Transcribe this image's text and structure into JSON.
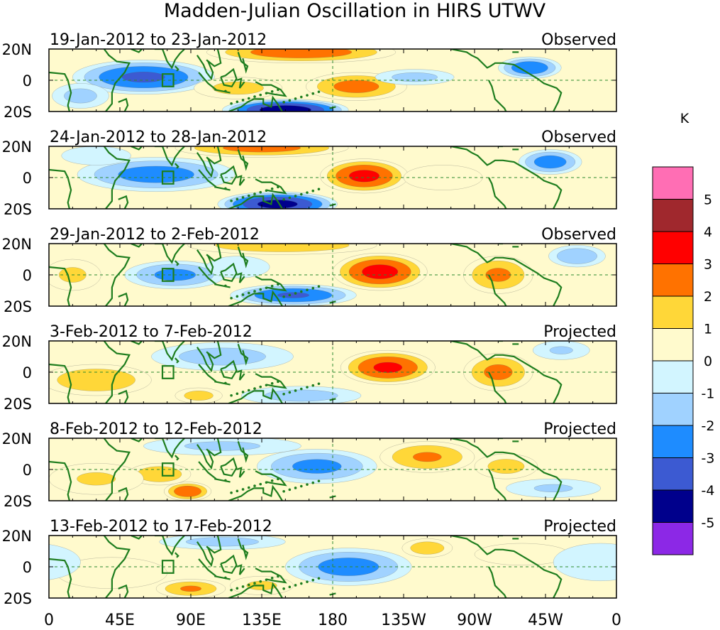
{
  "chart_data": {
    "type": "heatmap",
    "title": "Madden-Julian Oscillation in HIRS UTWV",
    "units": "K",
    "x_ticks": [
      "0",
      "45E",
      "90E",
      "135E",
      "180",
      "135W",
      "90W",
      "45W",
      "0"
    ],
    "y_ticks": [
      "20N",
      "0",
      "20S"
    ],
    "x_range_deg_east": [
      0,
      360
    ],
    "y_range_deg": [
      -20,
      20
    ],
    "colorbar": {
      "levels": [
        "5",
        "4",
        "3",
        "2",
        "1",
        "0",
        "-1",
        "-2",
        "-3",
        "-4",
        "-5"
      ],
      "colors": [
        "#ff6eb4",
        "#a0282d",
        "#ff0000",
        "#ff7200",
        "#ffd738",
        "#fffacd",
        "#d2f5ff",
        "#a0d2ff",
        "#1e8cff",
        "#3c5ad2",
        "#00008c",
        "#8c28e6"
      ]
    },
    "panels": [
      {
        "label": "19-Jan-2012 to 23-Jan-2012",
        "status": "Observed",
        "blobs": [
          {
            "lon": 60,
            "lat": 2,
            "r_lon": 45,
            "r_lat": 11,
            "v": -3.3
          },
          {
            "lon": 150,
            "lat": -19,
            "r_lon": 40,
            "r_lat": 7,
            "v": -4.8
          },
          {
            "lon": 160,
            "lat": 18,
            "r_lon": 60,
            "r_lat": 7,
            "v": 2.8
          },
          {
            "lon": 195,
            "lat": -4,
            "r_lon": 32,
            "r_lat": 9,
            "v": 2.5
          },
          {
            "lon": 305,
            "lat": 8,
            "r_lon": 20,
            "r_lat": 7,
            "v": -3.0
          },
          {
            "lon": 232,
            "lat": 2,
            "r_lon": 25,
            "r_lat": 5,
            "v": -1.5
          },
          {
            "lon": 120,
            "lat": -5,
            "r_lon": 28,
            "r_lat": 7,
            "v": 1.5
          },
          {
            "lon": 20,
            "lat": -10,
            "r_lon": 18,
            "r_lat": 8,
            "v": -1.5
          }
        ]
      },
      {
        "label": "24-Jan-2012 to 28-Jan-2012",
        "status": "Observed",
        "blobs": [
          {
            "lon": 68,
            "lat": 2,
            "r_lon": 50,
            "r_lat": 11,
            "v": -2.6
          },
          {
            "lon": 145,
            "lat": -17,
            "r_lon": 38,
            "r_lat": 8,
            "v": -4.5
          },
          {
            "lon": 135,
            "lat": 19,
            "r_lon": 55,
            "r_lat": 6,
            "v": 2.5
          },
          {
            "lon": 200,
            "lat": 1,
            "r_lon": 28,
            "r_lat": 11,
            "v": 3.4
          },
          {
            "lon": 318,
            "lat": 10,
            "r_lon": 20,
            "r_lat": 8,
            "v": -2.7
          },
          {
            "lon": 250,
            "lat": 0,
            "r_lon": 25,
            "r_lat": 8,
            "v": 1.0
          },
          {
            "lon": 30,
            "lat": 14,
            "r_lon": 22,
            "r_lat": 6,
            "v": -1.0
          }
        ]
      },
      {
        "label": "29-Jan-2012 to 2-Feb-2012",
        "status": "Observed",
        "blobs": [
          {
            "lon": 80,
            "lat": 0,
            "r_lon": 32,
            "r_lat": 9,
            "v": -2.4
          },
          {
            "lon": 155,
            "lat": -13,
            "r_lon": 40,
            "r_lat": 7,
            "v": -3.2
          },
          {
            "lon": 210,
            "lat": 2,
            "r_lon": 30,
            "r_lat": 12,
            "v": 3.5
          },
          {
            "lon": 148,
            "lat": 19,
            "r_lon": 60,
            "r_lat": 6,
            "v": 2.0
          },
          {
            "lon": 285,
            "lat": 0,
            "r_lon": 22,
            "r_lat": 12,
            "v": 2.3
          },
          {
            "lon": 335,
            "lat": 12,
            "r_lon": 18,
            "r_lat": 7,
            "v": -2.0
          },
          {
            "lon": 15,
            "lat": 0,
            "r_lon": 18,
            "r_lat": 10,
            "v": 1.3
          },
          {
            "lon": 120,
            "lat": 5,
            "r_lon": 20,
            "r_lat": 7,
            "v": -1.0
          }
        ]
      },
      {
        "label": "3-Feb-2012 to 7-Feb-2012",
        "status": "Projected",
        "blobs": [
          {
            "lon": 30,
            "lat": -5,
            "r_lon": 35,
            "r_lat": 10,
            "v": 2.0
          },
          {
            "lon": 215,
            "lat": 3,
            "r_lon": 30,
            "r_lat": 11,
            "v": 3.3
          },
          {
            "lon": 285,
            "lat": 0,
            "r_lon": 22,
            "r_lat": 12,
            "v": 2.4
          },
          {
            "lon": 110,
            "lat": 10,
            "r_lon": 45,
            "r_lat": 9,
            "v": -1.6
          },
          {
            "lon": 160,
            "lat": -15,
            "r_lon": 38,
            "r_lat": 6,
            "v": -1.6
          },
          {
            "lon": 95,
            "lat": -15,
            "r_lon": 15,
            "r_lat": 5,
            "v": 1.6
          },
          {
            "lon": 325,
            "lat": 14,
            "r_lon": 18,
            "r_lat": 6,
            "v": -1.2
          }
        ]
      },
      {
        "label": "8-Feb-2012 to 12-Feb-2012",
        "status": "Projected",
        "blobs": [
          {
            "lon": 88,
            "lat": -14,
            "r_lon": 15,
            "r_lat": 6,
            "v": 3.0
          },
          {
            "lon": 70,
            "lat": -3,
            "r_lon": 20,
            "r_lat": 7,
            "v": 2.0
          },
          {
            "lon": 170,
            "lat": 2,
            "r_lon": 38,
            "r_lat": 11,
            "v": -2.4
          },
          {
            "lon": 240,
            "lat": 8,
            "r_lon": 30,
            "r_lat": 10,
            "v": 2.2
          },
          {
            "lon": 290,
            "lat": 2,
            "r_lon": 20,
            "r_lat": 8,
            "v": 1.5
          },
          {
            "lon": 110,
            "lat": 15,
            "r_lon": 50,
            "r_lat": 6,
            "v": -1.3
          },
          {
            "lon": 30,
            "lat": -6,
            "r_lon": 30,
            "r_lat": 10,
            "v": 1.2
          },
          {
            "lon": 320,
            "lat": -12,
            "r_lon": 30,
            "r_lat": 6,
            "v": -1.2
          }
        ]
      },
      {
        "label": "13-Feb-2012 to 17-Feb-2012",
        "status": "Projected",
        "blobs": [
          {
            "lon": 190,
            "lat": 0,
            "r_lon": 40,
            "r_lat": 12,
            "v": -2.6
          },
          {
            "lon": 90,
            "lat": -14,
            "r_lon": 22,
            "r_lat": 6,
            "v": 2.2
          },
          {
            "lon": 135,
            "lat": -12,
            "r_lon": 20,
            "r_lat": 6,
            "v": 1.3
          },
          {
            "lon": 240,
            "lat": 12,
            "r_lon": 16,
            "r_lat": 6,
            "v": 1.8
          },
          {
            "lon": 110,
            "lat": 16,
            "r_lon": 40,
            "r_lat": 5,
            "v": -1.5
          },
          {
            "lon": 40,
            "lat": -4,
            "r_lon": 35,
            "r_lat": 10,
            "v": 0.9
          },
          {
            "lon": 300,
            "lat": 8,
            "r_lon": 30,
            "r_lat": 7,
            "v": 0.8
          },
          {
            "lon": 350,
            "lat": 3,
            "r_lon": 30,
            "r_lat": 12,
            "v": -0.9
          }
        ]
      }
    ]
  }
}
